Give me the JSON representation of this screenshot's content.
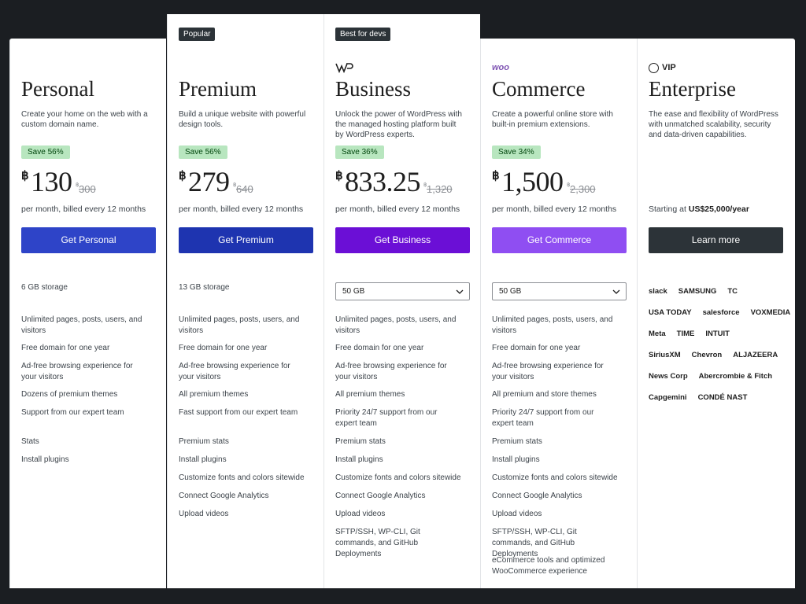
{
  "plans": [
    {
      "name": "Personal",
      "description": "Create your home on the web with a custom domain name.",
      "save": "Save 56%",
      "currency": "฿",
      "price": "130",
      "old_price": "300",
      "billing": "per month, billed every 12 months",
      "button": "Get Personal",
      "storage": "6 GB storage",
      "features": [
        "Unlimited pages, posts, users, and visitors",
        "Free domain for one year",
        "Ad-free browsing experience for your visitors",
        "Dozens of premium themes",
        "Support from our expert team",
        "Stats",
        "Install plugins"
      ]
    },
    {
      "badge": "Popular",
      "name": "Premium",
      "description": "Build a unique website with powerful design tools.",
      "save": "Save 56%",
      "currency": "฿",
      "price": "279",
      "old_price": "640",
      "billing": "per month, billed every 12 months",
      "button": "Get Premium",
      "storage": "13 GB storage",
      "features": [
        "Unlimited pages, posts, users, and visitors",
        "Free domain for one year",
        "Ad-free browsing experience for your visitors",
        "All premium themes",
        "Fast support from our expert team",
        "Premium stats",
        "Install plugins",
        "Customize fonts and colors sitewide",
        "Connect Google Analytics",
        "Upload videos"
      ]
    },
    {
      "badge": "Best for devs",
      "name": "Business",
      "description": "Unlock the power of WordPress with the managed hosting platform built by WordPress experts.",
      "save": "Save 36%",
      "currency": "฿",
      "price": "833.25",
      "old_price": "1,320",
      "billing": "per month, billed every 12 months",
      "button": "Get Business",
      "storage_select": "50 GB",
      "features": [
        "Unlimited pages, posts, users, and visitors",
        "Free domain for one year",
        "Ad-free browsing experience for your visitors",
        "All premium themes",
        "Priority 24/7 support from our expert team",
        "Premium stats",
        "Install plugins",
        "Customize fonts and colors sitewide",
        "Connect Google Analytics",
        "Upload videos",
        "SFTP/SSH, WP-CLI, Git commands, and GitHub Deployments"
      ]
    },
    {
      "logo": "woo",
      "name": "Commerce",
      "description": "Create a powerful online store with built-in premium extensions.",
      "save": "Save 34%",
      "currency": "฿",
      "price": "1,500",
      "old_price": "2,300",
      "billing": "per month, billed every 12 months",
      "button": "Get Commerce",
      "storage_select": "50 GB",
      "features": [
        "Unlimited pages, posts, users, and visitors",
        "Free domain for one year",
        "Ad-free browsing experience for your visitors",
        "All premium and store themes",
        "Priority 24/7 support from our expert team",
        "Premium stats",
        "Install plugins",
        "Customize fonts and colors sitewide",
        "Connect Google Analytics",
        "Upload videos",
        "SFTP/SSH, WP-CLI, Git commands, and GitHub Deployments",
        "eCommerce tools and optimized WooCommerce experience"
      ]
    },
    {
      "logo": "VIP",
      "name": "Enterprise",
      "description": "The ease and flexibility of WordPress with unmatched scalability, security and data-driven capabilities.",
      "price_prefix": "Starting at",
      "price": "US$25,000/year",
      "button": "Learn more",
      "logo_rows": [
        [
          "slack",
          "SAMSUNG",
          "TC"
        ],
        [
          "USA TODAY",
          "salesforce",
          "VOXMEDIA"
        ],
        [
          "Meta",
          "TIME",
          "INTUIT"
        ],
        [
          "SiriusXM",
          "Chevron",
          "ALJAZEERA"
        ],
        [
          "News Corp",
          "Abercrombie & Fitch"
        ],
        [
          "Capgemini",
          "CONDÉ NAST"
        ]
      ]
    }
  ]
}
